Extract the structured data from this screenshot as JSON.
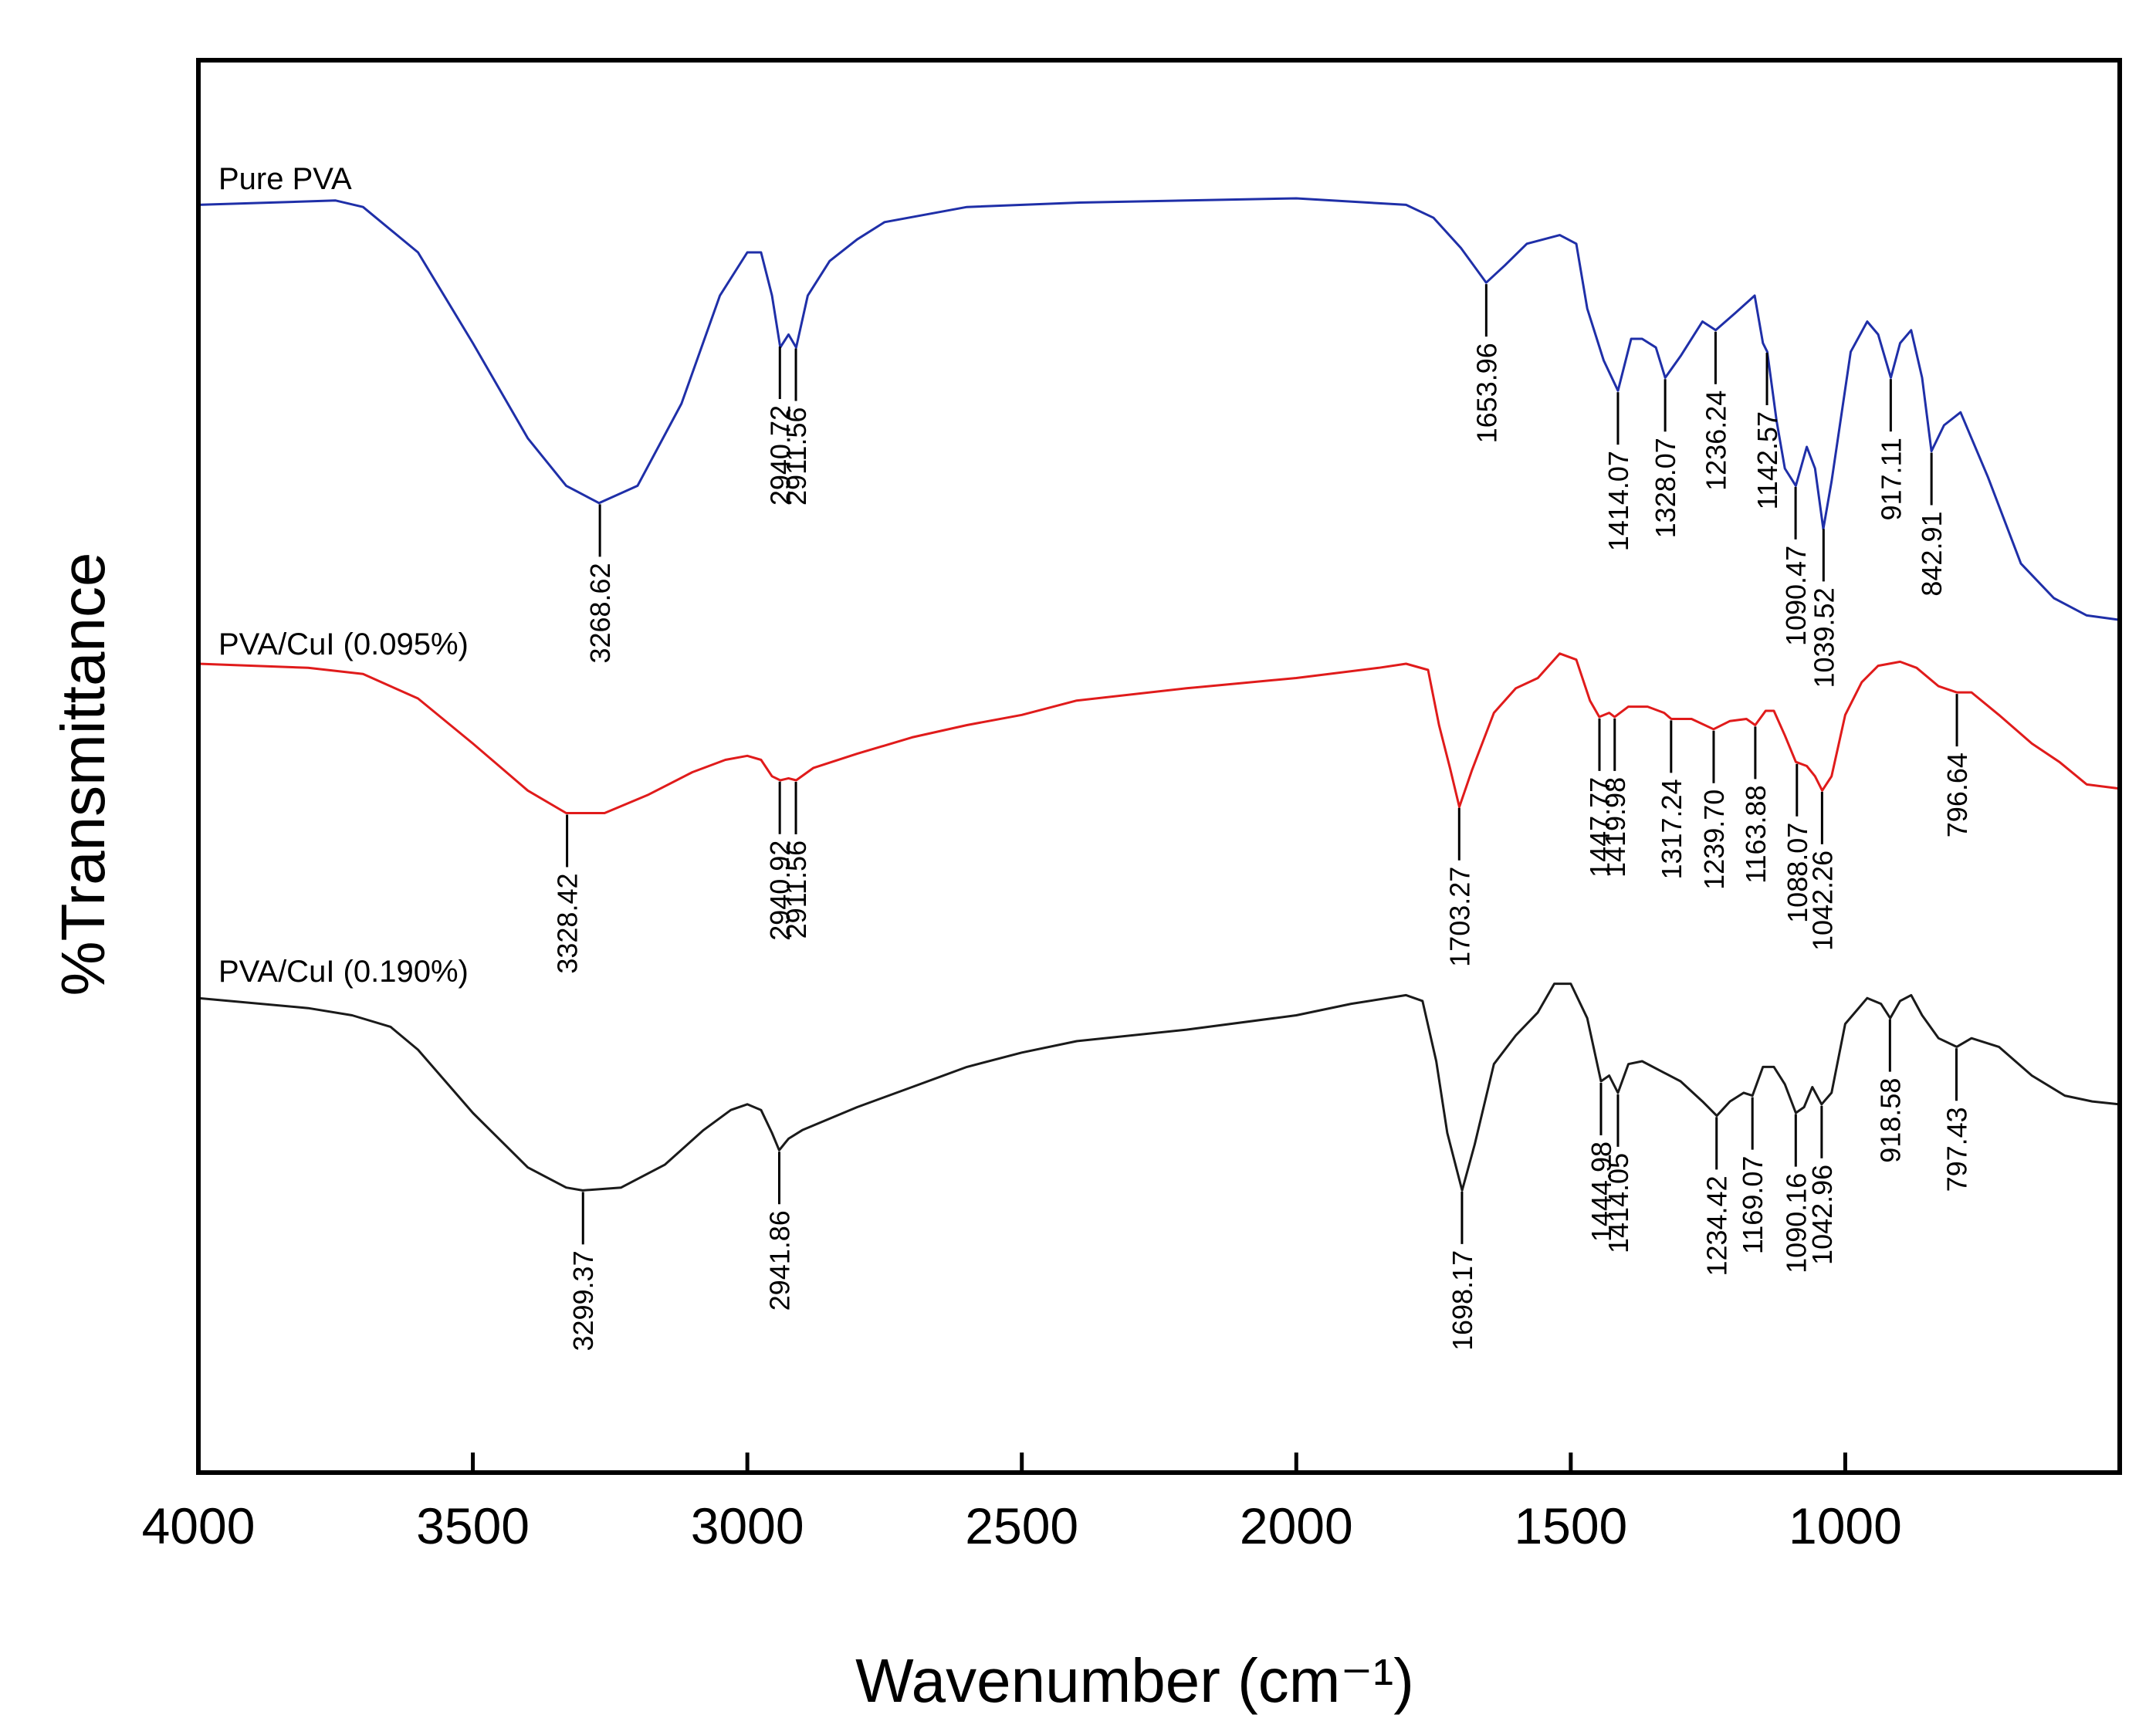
{
  "chart_data": {
    "type": "line",
    "title": "",
    "xlabel": "Wavenumber (cm⁻¹)",
    "ylabel": "%Transmittance",
    "xlim": [
      4000,
      500
    ],
    "x_reversed": true,
    "y_ticks": false,
    "grid": false,
    "legend": "none (series labelled inline above each curve)",
    "x_tick_labels": [
      "4000",
      "3500",
      "3000",
      "2500",
      "2000",
      "1500",
      "1000"
    ],
    "series": [
      {
        "name": "Pure PVA",
        "color": "#1f2fa8",
        "points": [
          [
            4000,
            0.96
          ],
          [
            3750,
            0.97
          ],
          [
            3700,
            0.955
          ],
          [
            3600,
            0.85
          ],
          [
            3500,
            0.64
          ],
          [
            3400,
            0.42
          ],
          [
            3330,
            0.31
          ],
          [
            3270,
            0.27
          ],
          [
            3200,
            0.31
          ],
          [
            3120,
            0.5
          ],
          [
            3050,
            0.75
          ],
          [
            3000,
            0.85
          ],
          [
            2975,
            0.85
          ],
          [
            2955,
            0.75
          ],
          [
            2940,
            0.63
          ],
          [
            2925,
            0.66
          ],
          [
            2911,
            0.63
          ],
          [
            2890,
            0.75
          ],
          [
            2850,
            0.83
          ],
          [
            2800,
            0.88
          ],
          [
            2750,
            0.92
          ],
          [
            2600,
            0.955
          ],
          [
            2400,
            0.965
          ],
          [
            2200,
            0.97
          ],
          [
            2000,
            0.975
          ],
          [
            1800,
            0.96
          ],
          [
            1750,
            0.93
          ],
          [
            1700,
            0.86
          ],
          [
            1654,
            0.78
          ],
          [
            1620,
            0.82
          ],
          [
            1580,
            0.87
          ],
          [
            1520,
            0.89
          ],
          [
            1490,
            0.87
          ],
          [
            1470,
            0.72
          ],
          [
            1440,
            0.6
          ],
          [
            1414,
            0.53
          ],
          [
            1390,
            0.65
          ],
          [
            1370,
            0.65
          ],
          [
            1345,
            0.63
          ],
          [
            1328,
            0.56
          ],
          [
            1300,
            0.61
          ],
          [
            1260,
            0.69
          ],
          [
            1236,
            0.67
          ],
          [
            1200,
            0.71
          ],
          [
            1165,
            0.75
          ],
          [
            1150,
            0.64
          ],
          [
            1142,
            0.62
          ],
          [
            1125,
            0.46
          ],
          [
            1110,
            0.35
          ],
          [
            1090,
            0.31
          ],
          [
            1070,
            0.4
          ],
          [
            1055,
            0.35
          ],
          [
            1040,
            0.21
          ],
          [
            1025,
            0.32
          ],
          [
            990,
            0.62
          ],
          [
            960,
            0.69
          ],
          [
            940,
            0.66
          ],
          [
            917,
            0.56
          ],
          [
            900,
            0.64
          ],
          [
            880,
            0.67
          ],
          [
            860,
            0.56
          ],
          [
            843,
            0.39
          ],
          [
            820,
            0.45
          ],
          [
            790,
            0.48
          ],
          [
            740,
            0.33
          ],
          [
            680,
            0.13
          ],
          [
            620,
            0.05
          ],
          [
            560,
            0.01
          ],
          [
            502,
            0.0
          ]
        ],
        "peaks": [
          "3268.62",
          "2940.72",
          "2911.56",
          "1653.96",
          "1414.07",
          "1328.07",
          "1236.24",
          "1142.57",
          "1090.47",
          "1039.52",
          "917.11",
          "842.91"
        ]
      },
      {
        "name": "PVA/CuI (0.095%)",
        "color": "#e01b1b",
        "points": [
          [
            4000,
            1.0
          ],
          [
            3800,
            0.98
          ],
          [
            3700,
            0.95
          ],
          [
            3600,
            0.83
          ],
          [
            3500,
            0.61
          ],
          [
            3400,
            0.38
          ],
          [
            3330,
            0.27
          ],
          [
            3260,
            0.27
          ],
          [
            3180,
            0.36
          ],
          [
            3100,
            0.47
          ],
          [
            3040,
            0.53
          ],
          [
            3000,
            0.55
          ],
          [
            2975,
            0.53
          ],
          [
            2955,
            0.45
          ],
          [
            2940,
            0.43
          ],
          [
            2925,
            0.44
          ],
          [
            2911,
            0.43
          ],
          [
            2880,
            0.49
          ],
          [
            2800,
            0.56
          ],
          [
            2700,
            0.64
          ],
          [
            2600,
            0.7
          ],
          [
            2500,
            0.75
          ],
          [
            2400,
            0.82
          ],
          [
            2200,
            0.88
          ],
          [
            2000,
            0.93
          ],
          [
            1850,
            0.98
          ],
          [
            1800,
            1.0
          ],
          [
            1760,
            0.97
          ],
          [
            1740,
            0.7
          ],
          [
            1720,
            0.49
          ],
          [
            1703,
            0.3
          ],
          [
            1680,
            0.48
          ],
          [
            1640,
            0.76
          ],
          [
            1600,
            0.88
          ],
          [
            1560,
            0.93
          ],
          [
            1520,
            1.05
          ],
          [
            1490,
            1.02
          ],
          [
            1465,
            0.82
          ],
          [
            1448,
            0.74
          ],
          [
            1430,
            0.76
          ],
          [
            1420,
            0.74
          ],
          [
            1395,
            0.79
          ],
          [
            1360,
            0.79
          ],
          [
            1330,
            0.76
          ],
          [
            1317,
            0.73
          ],
          [
            1280,
            0.73
          ],
          [
            1240,
            0.68
          ],
          [
            1210,
            0.72
          ],
          [
            1180,
            0.73
          ],
          [
            1164,
            0.7
          ],
          [
            1145,
            0.77
          ],
          [
            1130,
            0.77
          ],
          [
            1110,
            0.65
          ],
          [
            1090,
            0.52
          ],
          [
            1070,
            0.5
          ],
          [
            1055,
            0.45
          ],
          [
            1042,
            0.38
          ],
          [
            1025,
            0.45
          ],
          [
            1000,
            0.75
          ],
          [
            970,
            0.91
          ],
          [
            940,
            0.99
          ],
          [
            900,
            1.01
          ],
          [
            870,
            0.98
          ],
          [
            830,
            0.89
          ],
          [
            797,
            0.86
          ],
          [
            770,
            0.86
          ],
          [
            720,
            0.75
          ],
          [
            660,
            0.61
          ],
          [
            610,
            0.52
          ],
          [
            560,
            0.41
          ],
          [
            502,
            0.39
          ]
        ],
        "peaks": [
          "3328.42",
          "2940.92",
          "2911.56",
          "1703.27",
          "1447.77",
          "1419.98",
          "1317.24",
          "1239.70",
          "1163.88",
          "1088.07",
          "1042.26",
          "796.64"
        ]
      },
      {
        "name": "PVA/CuI (0.190%)",
        "color": "#1a1a1a",
        "points": [
          [
            4000,
            0.97
          ],
          [
            3800,
            0.935
          ],
          [
            3720,
            0.91
          ],
          [
            3650,
            0.87
          ],
          [
            3600,
            0.79
          ],
          [
            3500,
            0.57
          ],
          [
            3400,
            0.38
          ],
          [
            3330,
            0.31
          ],
          [
            3300,
            0.3
          ],
          [
            3230,
            0.31
          ],
          [
            3150,
            0.39
          ],
          [
            3080,
            0.51
          ],
          [
            3030,
            0.58
          ],
          [
            3000,
            0.6
          ],
          [
            2975,
            0.58
          ],
          [
            2955,
            0.5
          ],
          [
            2942,
            0.44
          ],
          [
            2925,
            0.48
          ],
          [
            2900,
            0.51
          ],
          [
            2850,
            0.55
          ],
          [
            2800,
            0.59
          ],
          [
            2700,
            0.66
          ],
          [
            2600,
            0.73
          ],
          [
            2500,
            0.78
          ],
          [
            2400,
            0.82
          ],
          [
            2200,
            0.86
          ],
          [
            2000,
            0.91
          ],
          [
            1900,
            0.95
          ],
          [
            1800,
            0.98
          ],
          [
            1770,
            0.96
          ],
          [
            1745,
            0.75
          ],
          [
            1725,
            0.5
          ],
          [
            1698,
            0.3
          ],
          [
            1675,
            0.46
          ],
          [
            1640,
            0.74
          ],
          [
            1600,
            0.84
          ],
          [
            1560,
            0.92
          ],
          [
            1530,
            1.02
          ],
          [
            1500,
            1.02
          ],
          [
            1470,
            0.9
          ],
          [
            1445,
            0.68
          ],
          [
            1430,
            0.7
          ],
          [
            1414,
            0.64
          ],
          [
            1395,
            0.74
          ],
          [
            1370,
            0.75
          ],
          [
            1330,
            0.71
          ],
          [
            1300,
            0.68
          ],
          [
            1260,
            0.61
          ],
          [
            1234,
            0.56
          ],
          [
            1210,
            0.61
          ],
          [
            1185,
            0.64
          ],
          [
            1169,
            0.63
          ],
          [
            1150,
            0.73
          ],
          [
            1130,
            0.73
          ],
          [
            1110,
            0.67
          ],
          [
            1090,
            0.57
          ],
          [
            1075,
            0.59
          ],
          [
            1060,
            0.66
          ],
          [
            1043,
            0.6
          ],
          [
            1025,
            0.64
          ],
          [
            1000,
            0.88
          ],
          [
            960,
            0.97
          ],
          [
            935,
            0.95
          ],
          [
            918,
            0.9
          ],
          [
            900,
            0.96
          ],
          [
            880,
            0.98
          ],
          [
            860,
            0.91
          ],
          [
            830,
            0.83
          ],
          [
            797,
            0.8
          ],
          [
            770,
            0.83
          ],
          [
            720,
            0.8
          ],
          [
            660,
            0.7
          ],
          [
            600,
            0.63
          ],
          [
            550,
            0.61
          ],
          [
            502,
            0.6
          ]
        ],
        "peaks": [
          "3299.37",
          "2941.86",
          "1698.17",
          "1444.98",
          "1414.05",
          "1234.42",
          "1169.07",
          "1090.16",
          "1042.96",
          "918.58",
          "797.43"
        ]
      }
    ]
  }
}
